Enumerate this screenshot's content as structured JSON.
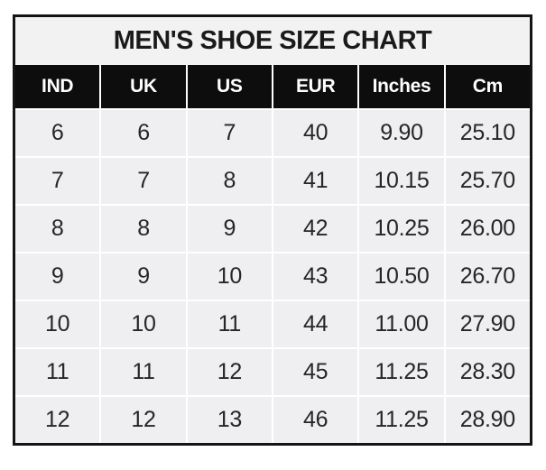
{
  "page_title": "MEN'S SHOE SIZE CHART",
  "chart_data": {
    "type": "table",
    "title": "MEN'S SHOE SIZE CHART",
    "columns": [
      "IND",
      "UK",
      "US",
      "EUR",
      "Inches",
      "Cm"
    ],
    "rows": [
      [
        "6",
        "6",
        "7",
        "40",
        "9.90",
        "25.10"
      ],
      [
        "7",
        "7",
        "8",
        "41",
        "10.15",
        "25.70"
      ],
      [
        "8",
        "8",
        "9",
        "42",
        "10.25",
        "26.00"
      ],
      [
        "9",
        "9",
        "10",
        "43",
        "10.50",
        "26.70"
      ],
      [
        "10",
        "10",
        "11",
        "44",
        "11.00",
        "27.90"
      ],
      [
        "11",
        "11",
        "12",
        "45",
        "11.25",
        "28.30"
      ],
      [
        "12",
        "12",
        "13",
        "46",
        "11.25",
        "28.90"
      ]
    ],
    "legend": "none",
    "grid": "white gridlines on light gray cells"
  },
  "colors": {
    "header_bg": "#0d0d0d",
    "header_text": "#ffffff",
    "row_bg": "#efeef0",
    "title_bg": "#f2f2f2",
    "border": "#141414",
    "grid_line": "#ffffff",
    "body_text": "#262626",
    "title_text": "#1a1a1a",
    "page_bg": "#ffffff"
  }
}
